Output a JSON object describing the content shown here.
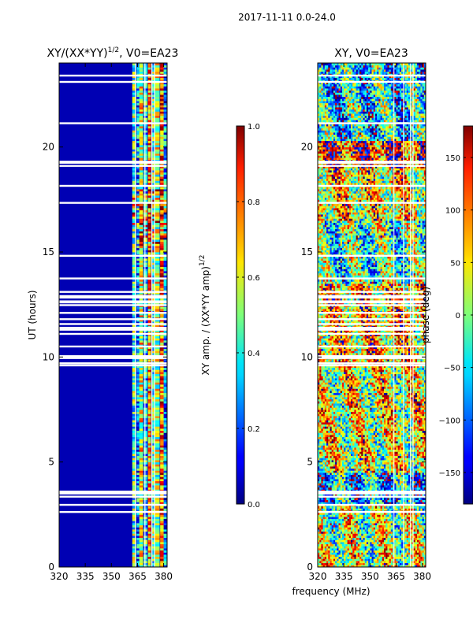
{
  "figure_title": "2017-11-11 0.0-24.0",
  "chart_data": [
    {
      "type": "heatmap",
      "title": "XY/(XX*YY)",
      "title_exponent": "1/2",
      "title_suffix": ", V0=EA23",
      "xlabel": "",
      "ylabel": "UT (hours)",
      "xlim": [
        320,
        382
      ],
      "ylim": [
        0,
        24
      ],
      "xticks": [
        320,
        335,
        350,
        365,
        380
      ],
      "yticks": [
        0,
        5,
        10,
        15,
        20
      ],
      "quantity": "XY amplitude normalized",
      "band_structure": [
        {
          "freq_range": [
            320,
            360
          ],
          "value": 0.05
        },
        {
          "freq_range": [
            360,
            382
          ],
          "value": 0.35
        }
      ],
      "colorbar": {
        "label": "XY amp. / (XX*YY amp)",
        "label_exponent": "1/2",
        "range": [
          0.0,
          1.0
        ],
        "ticks": [
          "0.0",
          "0.2",
          "0.4",
          "0.6",
          "0.8",
          "1.0"
        ],
        "colormap": "jet"
      }
    },
    {
      "type": "heatmap",
      "title": "XY, V0=EA23",
      "xlabel": "frequency (MHz)",
      "ylabel": "",
      "xlim": [
        320,
        382
      ],
      "ylim": [
        0,
        24
      ],
      "xticks": [
        320,
        335,
        350,
        365,
        380
      ],
      "yticks": [
        0,
        5,
        10,
        15,
        20
      ],
      "quantity": "XY phase",
      "colorbar": {
        "label": "phase (deg)",
        "range": [
          -180,
          180
        ],
        "ticks": [
          "−150",
          "−100",
          "−50",
          "0",
          "50",
          "100",
          "150"
        ],
        "colormap": "jet"
      }
    }
  ]
}
